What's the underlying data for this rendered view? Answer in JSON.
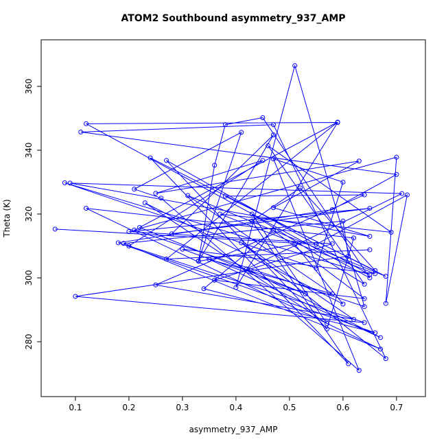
{
  "chart_data": {
    "type": "line",
    "title": "ATOM2 Southbound asymmetry_937_AMP",
    "x_label": "asymmetry_937_AMP",
    "y_label": "Theta (K)",
    "color": "#0000ff",
    "xlim": [
      0.036,
      0.754
    ],
    "xticks": [
      0.1,
      0.2,
      0.3,
      0.4,
      0.5,
      0.6,
      0.7
    ],
    "ylim": [
      262.8,
      374.6
    ],
    "yticks": [
      280,
      300,
      320,
      340,
      360
    ],
    "x": [
      0.062,
      0.55,
      0.72,
      0.68,
      0.7,
      0.21,
      0.64,
      0.51,
      0.4,
      0.59,
      0.12,
      0.65,
      0.45,
      0.38,
      0.36,
      0.33,
      0.41,
      0.21,
      0.26,
      0.63,
      0.47,
      0.6,
      0.55,
      0.08,
      0.65,
      0.27,
      0.57,
      0.62,
      0.12,
      0.67,
      0.19,
      0.6,
      0.61,
      0.1,
      0.64,
      0.2,
      0.45,
      0.25,
      0.63,
      0.47,
      0.65,
      0.09,
      0.71,
      0.42,
      0.67,
      0.35,
      0.58,
      0.31,
      0.68,
      0.24,
      0.61,
      0.43,
      0.52,
      0.66,
      0.38,
      0.64,
      0.25,
      0.62,
      0.41,
      0.68,
      0.47,
      0.11,
      0.7,
      0.58,
      0.18,
      0.66,
      0.34,
      0.47,
      0.64,
      0.36,
      0.58,
      0.2,
      0.65,
      0.28,
      0.47,
      0.33,
      0.51,
      0.6,
      0.23,
      0.57,
      0.43,
      0.64,
      0.46,
      0.69,
      0.37,
      0.66,
      0.3,
      0.53,
      0.22,
      0.59,
      0.27,
      0.65
    ],
    "values": [
      315.3,
      310.5,
      326,
      292,
      337.8,
      315,
      291,
      366.5,
      297,
      348.7,
      348.3,
      300,
      350.2,
      348,
      335.3,
      305.3,
      345.6,
      327.8,
      325,
      271,
      337.3,
      330,
      303,
      329.8,
      301,
      336.8,
      284,
      312.5,
      321.8,
      277.7,
      310.8,
      317.8,
      306.8,
      294.2,
      286,
      310,
      336.8,
      326.5,
      336.6,
      322,
      313,
      329.7,
      326.4,
      302.8,
      281.3,
      305.8,
      295,
      325.8,
      300.5,
      337.6,
      273.1,
      317.8,
      328.2,
      302.3,
      325.6,
      326,
      297.8,
      287,
      311,
      274.7,
      348,
      345.7,
      332.4,
      321.4,
      311,
      282.8,
      296.6,
      314.8,
      293.5,
      299.3,
      310.7,
      314.5,
      321.8,
      313.8,
      344.8,
      305.2,
      310.5,
      291.8,
      323.5,
      285.7,
      320,
      298,
      341.4,
      314.3,
      320,
      301.3,
      309,
      295,
      315.8,
      348.8,
      305.9,
      308.8
    ]
  }
}
